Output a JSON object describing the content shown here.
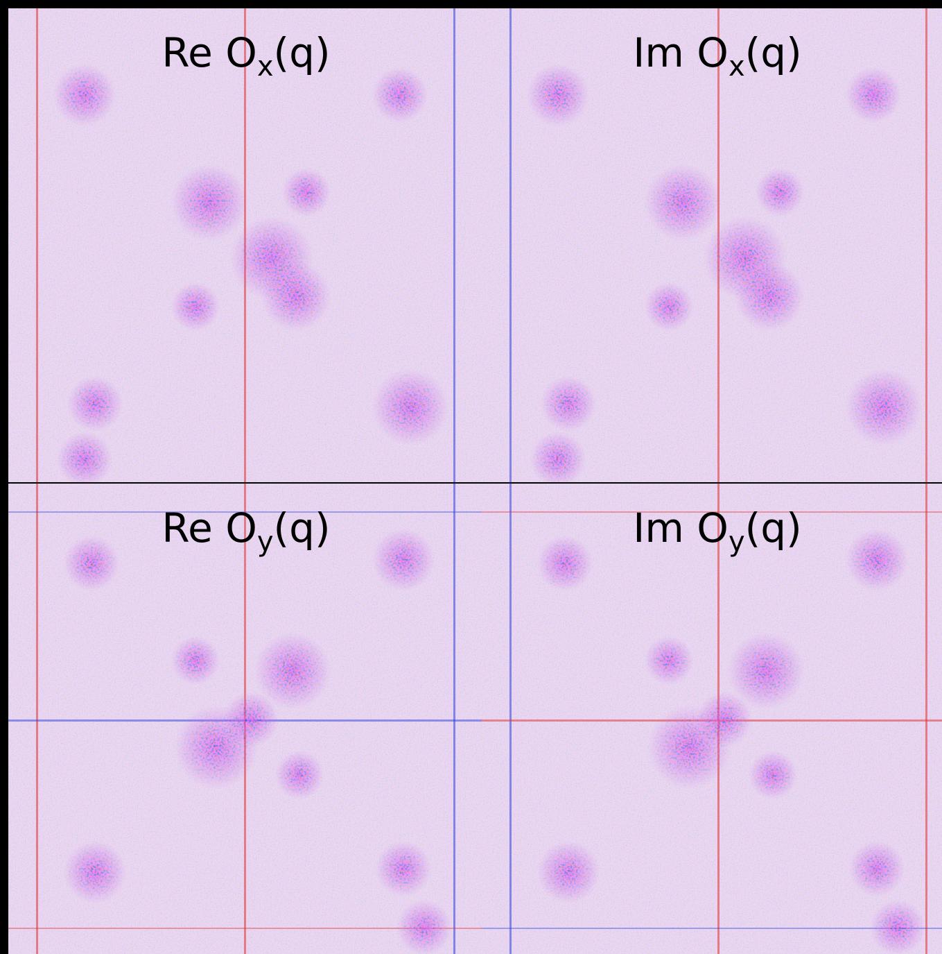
{
  "panels": [
    {
      "label": {
        "prefix": "Re O",
        "subscript": "x",
        "suffix": "(q)"
      }
    },
    {
      "label": {
        "prefix": "Im O",
        "subscript": "x",
        "suffix": "(q)"
      }
    },
    {
      "label": {
        "prefix": "Re O",
        "subscript": "y",
        "suffix": "(q)"
      }
    },
    {
      "label": {
        "prefix": "Im O",
        "subscript": "y",
        "suffix": "(q)"
      }
    }
  ]
}
